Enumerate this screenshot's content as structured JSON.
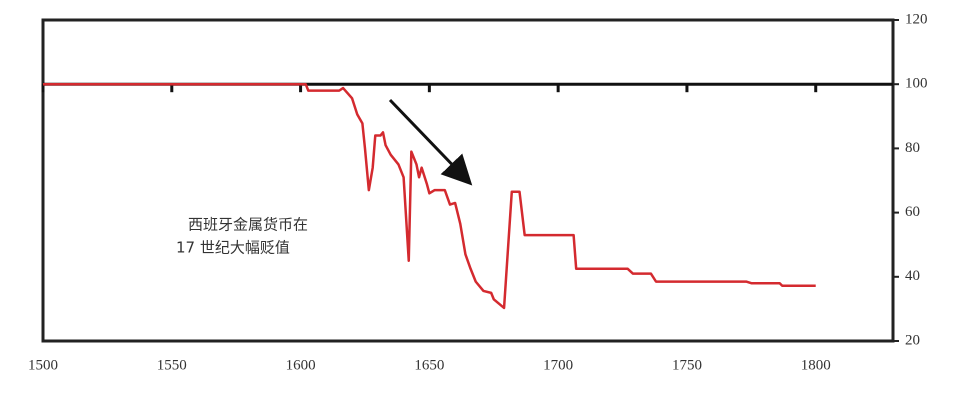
{
  "chart_data": {
    "type": "line",
    "annotation": [
      "西班牙金属货币在",
      "17 世纪大幅贬值"
    ],
    "x": [
      1500,
      1602,
      1603,
      1615,
      1616.5,
      1620,
      1622,
      1624,
      1625,
      1626.5,
      1628,
      1629,
      1631,
      1632,
      1633,
      1635,
      1638,
      1640,
      1642,
      1643,
      1645,
      1646,
      1647,
      1649,
      1650,
      1652,
      1656,
      1658,
      1660,
      1662,
      1664,
      1666,
      1668,
      1671,
      1674,
      1675,
      1679,
      1682,
      1685,
      1687,
      1706,
      1707,
      1727,
      1729,
      1736,
      1738,
      1773,
      1775,
      1786,
      1787,
      1800
    ],
    "series": [
      {
        "color": "#d42a2f",
        "values": [
          100,
          100,
          98,
          98,
          98.8,
          95.6,
          90.6,
          87.8,
          80,
          67,
          74,
          84,
          84,
          85,
          81,
          78,
          75,
          71,
          45,
          79,
          75,
          71,
          74,
          69,
          66,
          67,
          67,
          62.5,
          63,
          56.5,
          47,
          42.5,
          38.5,
          35.6,
          35,
          33,
          30.3,
          66.5,
          66.5,
          53,
          53,
          42.5,
          42.5,
          41,
          41,
          38.5,
          38.5,
          38,
          38,
          37.2,
          37.2
        ]
      }
    ],
    "xlim": [
      1500,
      1830
    ],
    "xticks": [
      1500,
      1550,
      1600,
      1650,
      1700,
      1750,
      1800
    ],
    "ylim": [
      20,
      120
    ],
    "yticks": [
      20,
      40,
      60,
      80,
      100,
      120
    ],
    "hline": 100
  }
}
